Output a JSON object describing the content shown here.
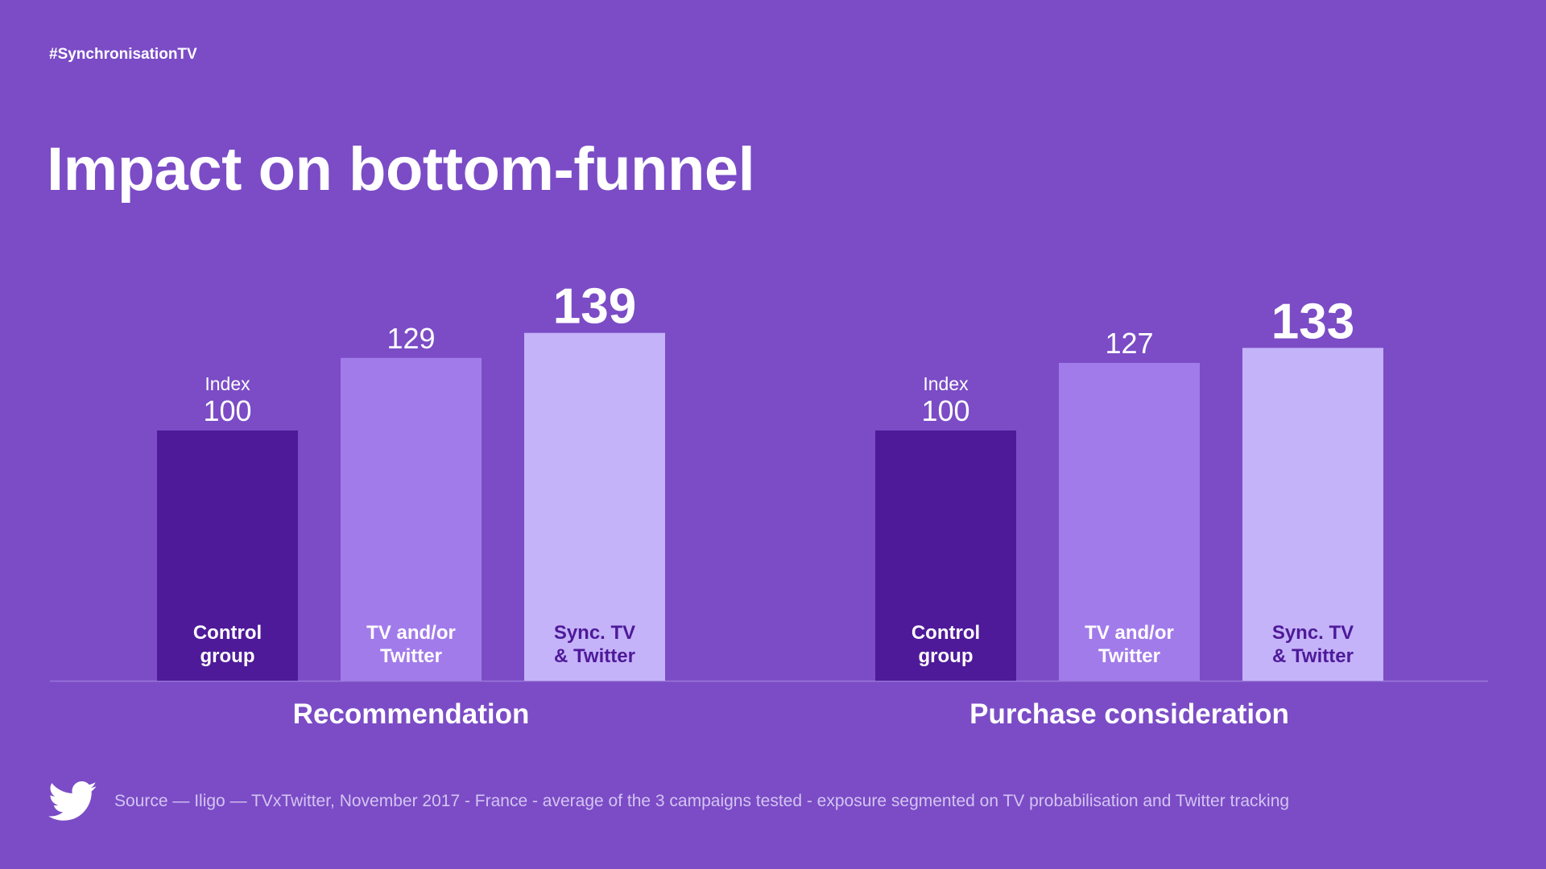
{
  "hashtag": "#SynchronisationTV",
  "title": "Impact on bottom-funnel",
  "source": "Source — Iligo — TVxTwitter, November 2017 - France - average of the 3 campaigns tested - exposure segmented on TV probabilisation and Twitter tracking",
  "icons": {
    "brand": "twitter-bird-icon"
  },
  "colors": {
    "background": "#7b4cc6",
    "control_bar": "#4e1a99",
    "tv_twitter_bar": "#a27bea",
    "sync_bar": "#c5b3f9",
    "white": "#ffffff",
    "dark_label": "#4e1a99",
    "baseline": "#9a79d8"
  },
  "chart_data": [
    {
      "type": "bar",
      "group_label": "Recommendation",
      "index_label": "Index",
      "categories": [
        "Control\ngroup",
        "TV and/or\nTwitter",
        "Sync. TV\n& Twitter"
      ],
      "values": [
        100,
        129,
        139
      ]
    },
    {
      "type": "bar",
      "group_label": "Purchase consideration",
      "index_label": "Index",
      "categories": [
        "Control\ngroup",
        "TV and/or\nTwitter",
        "Sync. TV\n& Twitter"
      ],
      "values": [
        100,
        127,
        133
      ]
    }
  ]
}
